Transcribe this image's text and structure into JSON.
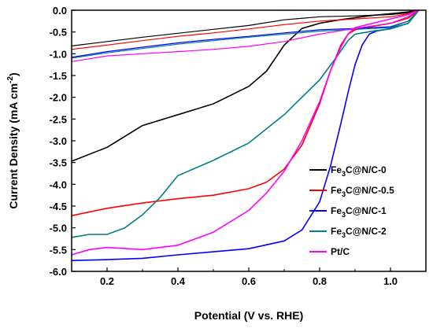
{
  "chart_data": {
    "type": "line",
    "xlabel": "Potential (V vs. RHE)",
    "ylabel": "Current Density (mA cm-2)",
    "xlim": [
      0.1,
      1.1
    ],
    "ylim": [
      -6.0,
      0.0
    ],
    "xticks": [
      "0.2",
      "0.4",
      "0.6",
      "0.8",
      "1.0"
    ],
    "xtick_values": [
      0.2,
      0.4,
      0.6,
      0.8,
      1.0
    ],
    "yticks": [
      "0.0",
      "-0.5",
      "-1.0",
      "-1.5",
      "-2.0",
      "-2.5",
      "-3.0",
      "-3.5",
      "-4.0",
      "-4.5",
      "-5.0",
      "-5.5",
      "-6.0"
    ],
    "ytick_values": [
      0.0,
      -0.5,
      -1.0,
      -1.5,
      -2.0,
      -2.5,
      -3.0,
      -3.5,
      -4.0,
      -4.5,
      -5.0,
      -5.5,
      -6.0
    ],
    "grid": false,
    "legend_position": "bottom-right",
    "series": [
      {
        "name": "Fe3C@N/C-0",
        "label_parts": [
          "Fe",
          "3",
          "C@N/C-0"
        ],
        "color": "#000000",
        "x": [
          0.1,
          0.2,
          0.3,
          0.4,
          0.5,
          0.6,
          0.65,
          0.7,
          0.75,
          0.8,
          0.85,
          0.9,
          0.95,
          1.0,
          1.05,
          1.07
        ],
        "y": [
          -3.47,
          -3.15,
          -2.65,
          -2.4,
          -2.15,
          -1.75,
          -1.4,
          -0.8,
          -0.42,
          -0.3,
          -0.23,
          -0.17,
          -0.12,
          -0.08,
          -0.04,
          0.0
        ],
        "x_upper": [
          0.1,
          0.2,
          0.3,
          0.4,
          0.5,
          0.6,
          0.7,
          0.8,
          0.9,
          1.0,
          1.05,
          1.07
        ],
        "y_upper": [
          -0.82,
          -0.72,
          -0.62,
          -0.53,
          -0.44,
          -0.35,
          -0.22,
          -0.15,
          -0.13,
          -0.1,
          -0.06,
          0.0
        ]
      },
      {
        "name": "Fe3C@N/C-0.5",
        "label_parts": [
          "Fe",
          "3",
          "C@N/C-0.5"
        ],
        "color": "#ff0000",
        "x": [
          0.1,
          0.2,
          0.3,
          0.4,
          0.5,
          0.6,
          0.65,
          0.7,
          0.75,
          0.8,
          0.83,
          0.86,
          0.88,
          0.9,
          0.95,
          1.0,
          1.05,
          1.08
        ],
        "y": [
          -4.72,
          -4.55,
          -4.43,
          -4.33,
          -4.25,
          -4.1,
          -3.95,
          -3.65,
          -3.1,
          -2.15,
          -1.4,
          -0.8,
          -0.55,
          -0.45,
          -0.37,
          -0.3,
          -0.18,
          0.0
        ],
        "x_upper": [
          0.1,
          0.2,
          0.3,
          0.4,
          0.5,
          0.6,
          0.7,
          0.8,
          0.9,
          1.0,
          1.05,
          1.08
        ],
        "y_upper": [
          -0.9,
          -0.8,
          -0.7,
          -0.6,
          -0.52,
          -0.43,
          -0.33,
          -0.25,
          -0.2,
          -0.15,
          -0.08,
          0.0
        ]
      },
      {
        "name": "Fe3C@N/C-1",
        "label_parts": [
          "Fe",
          "3",
          "C@N/C-1"
        ],
        "color": "#0000ff",
        "x": [
          0.1,
          0.2,
          0.3,
          0.4,
          0.5,
          0.6,
          0.7,
          0.75,
          0.8,
          0.83,
          0.86,
          0.88,
          0.9,
          0.92,
          0.94,
          0.96,
          1.0,
          1.05,
          1.08
        ],
        "y": [
          -5.75,
          -5.73,
          -5.7,
          -5.62,
          -5.55,
          -5.48,
          -5.3,
          -5.05,
          -4.4,
          -3.6,
          -2.6,
          -1.9,
          -1.25,
          -0.8,
          -0.55,
          -0.48,
          -0.42,
          -0.3,
          0.0
        ],
        "x_upper": [
          0.1,
          0.2,
          0.3,
          0.4,
          0.5,
          0.6,
          0.7,
          0.8,
          0.9,
          1.0,
          1.05,
          1.08
        ],
        "y_upper": [
          -1.08,
          -0.95,
          -0.85,
          -0.75,
          -0.67,
          -0.6,
          -0.52,
          -0.45,
          -0.42,
          -0.38,
          -0.25,
          0.0
        ]
      },
      {
        "name": "Fe3C@N/C-2",
        "label_parts": [
          "Fe",
          "3",
          "C@N/C-2"
        ],
        "color": "#008080",
        "x": [
          0.1,
          0.15,
          0.2,
          0.25,
          0.3,
          0.35,
          0.4,
          0.5,
          0.6,
          0.7,
          0.8,
          0.85,
          0.88,
          0.9,
          0.95,
          1.0,
          1.05,
          1.08
        ],
        "y": [
          -5.22,
          -5.15,
          -5.15,
          -5.0,
          -4.7,
          -4.3,
          -3.8,
          -3.45,
          -3.05,
          -2.4,
          -1.6,
          -1.05,
          -0.7,
          -0.55,
          -0.48,
          -0.43,
          -0.3,
          0.0
        ],
        "x_upper": [
          0.1,
          0.2,
          0.3,
          0.4,
          0.5,
          0.6,
          0.7,
          0.8,
          0.9,
          1.0,
          1.05,
          1.08
        ],
        "y_upper": [
          -1.1,
          -0.98,
          -0.88,
          -0.78,
          -0.7,
          -0.62,
          -0.55,
          -0.48,
          -0.44,
          -0.4,
          -0.25,
          0.0
        ]
      },
      {
        "name": "Pt/C",
        "label_parts": [
          "Pt/C",
          "",
          ""
        ],
        "color": "#ff00ff",
        "x": [
          0.1,
          0.15,
          0.2,
          0.3,
          0.4,
          0.5,
          0.6,
          0.65,
          0.7,
          0.75,
          0.8,
          0.83,
          0.86,
          0.88,
          0.9,
          0.95,
          1.0,
          1.05,
          1.08
        ],
        "y": [
          -5.62,
          -5.5,
          -5.45,
          -5.5,
          -5.4,
          -5.1,
          -4.6,
          -4.2,
          -3.7,
          -3.0,
          -2.1,
          -1.4,
          -0.85,
          -0.55,
          -0.4,
          -0.3,
          -0.2,
          -0.1,
          0.0
        ],
        "x_upper": [
          0.1,
          0.2,
          0.3,
          0.4,
          0.5,
          0.6,
          0.7,
          0.8,
          0.9,
          1.0,
          1.05,
          1.08
        ],
        "y_upper": [
          -1.18,
          -1.05,
          -1.0,
          -0.95,
          -0.9,
          -0.83,
          -0.72,
          -0.55,
          -0.42,
          -0.3,
          -0.15,
          0.0
        ]
      }
    ]
  }
}
